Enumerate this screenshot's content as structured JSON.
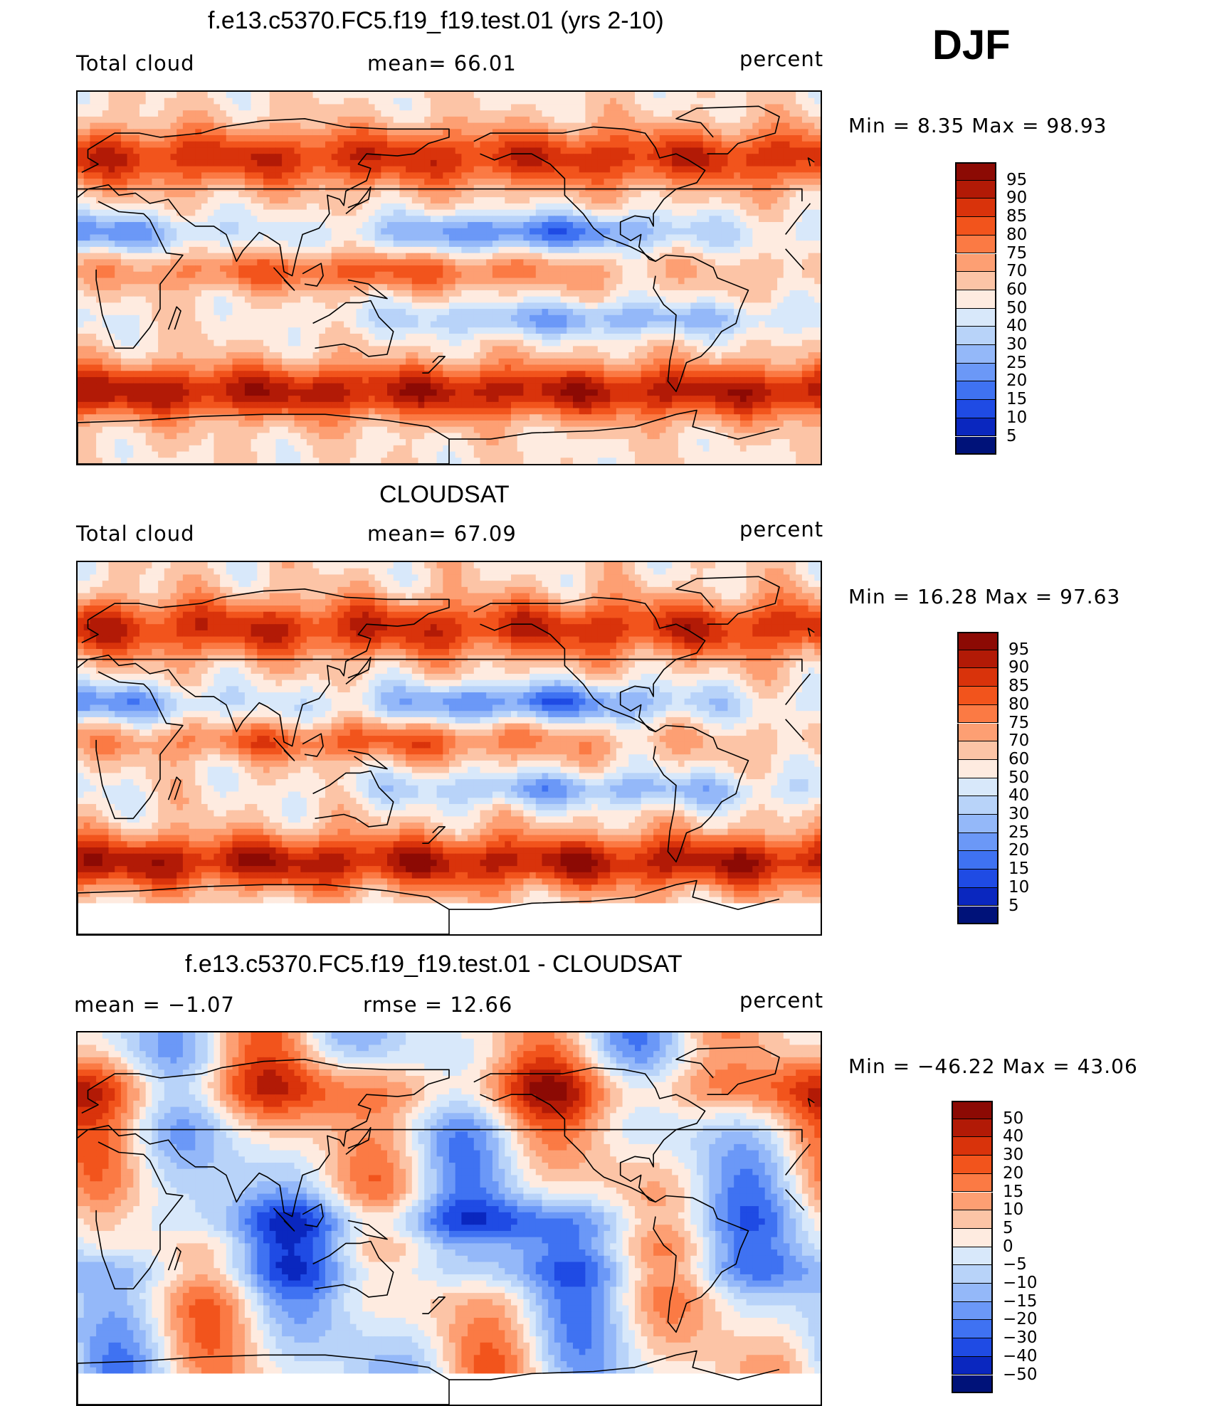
{
  "season": "DJF",
  "panels": [
    {
      "title": "f.e13.c5370.FC5.f19_f19.test.01 (yrs 2-10)",
      "left_label": "Total cloud",
      "center_label": "mean=   66.01",
      "right_label": "percent",
      "stats": "Min =     8.35  Max  =    98.93",
      "palette": [
        "#8c0a04",
        "#b21a06",
        "#d9330b",
        "#f2541c",
        "#fb7a44",
        "#fd9f73",
        "#fcc4a6",
        "#feebe0",
        "#d8e8fa",
        "#b8d3f9",
        "#94b8f9",
        "#6b98f7",
        "#3f72f2",
        "#1f4be4",
        "#0a27bf",
        "#001279"
      ],
      "levels": [
        "95",
        "90",
        "85",
        "80",
        "75",
        "70",
        "60",
        "50",
        "40",
        "30",
        "25",
        "20",
        "15",
        "10",
        "5"
      ],
      "field": "model"
    },
    {
      "title": "CLOUDSAT",
      "left_label": "Total cloud",
      "center_label": "mean=   67.09",
      "right_label": "percent",
      "stats": "Min =   16.28  Max  =    97.63",
      "palette": [
        "#8c0a04",
        "#b21a06",
        "#d9330b",
        "#f2541c",
        "#fb7a44",
        "#fd9f73",
        "#fcc4a6",
        "#feebe0",
        "#d8e8fa",
        "#b8d3f9",
        "#94b8f9",
        "#6b98f7",
        "#3f72f2",
        "#1f4be4",
        "#0a27bf",
        "#001279"
      ],
      "levels": [
        "95",
        "90",
        "85",
        "80",
        "75",
        "70",
        "60",
        "50",
        "40",
        "30",
        "25",
        "20",
        "15",
        "10",
        "5"
      ],
      "field": "obs"
    },
    {
      "title": "f.e13.c5370.FC5.f19_f19.test.01 - CLOUDSAT",
      "left_label": "mean  =    −1.07",
      "center_label": "rmse  =    12.66",
      "right_label": "percent",
      "stats": "Min  = −46.22  Max  =    43.06",
      "palette": [
        "#8c0a04",
        "#b21a06",
        "#d9330b",
        "#f2541c",
        "#fb7a44",
        "#fd9f73",
        "#fcc4a6",
        "#feebe0",
        "#d8e8fa",
        "#b8d3f9",
        "#94b8f9",
        "#6b98f7",
        "#3f72f2",
        "#1f4be4",
        "#0a27bf",
        "#001279"
      ],
      "levels": [
        "50",
        "40",
        "30",
        "20",
        "15",
        "10",
        "5",
        "0",
        "−5",
        "−10",
        "−15",
        "−20",
        "−30",
        "−40",
        "−50"
      ],
      "field": "diff"
    }
  ]
}
